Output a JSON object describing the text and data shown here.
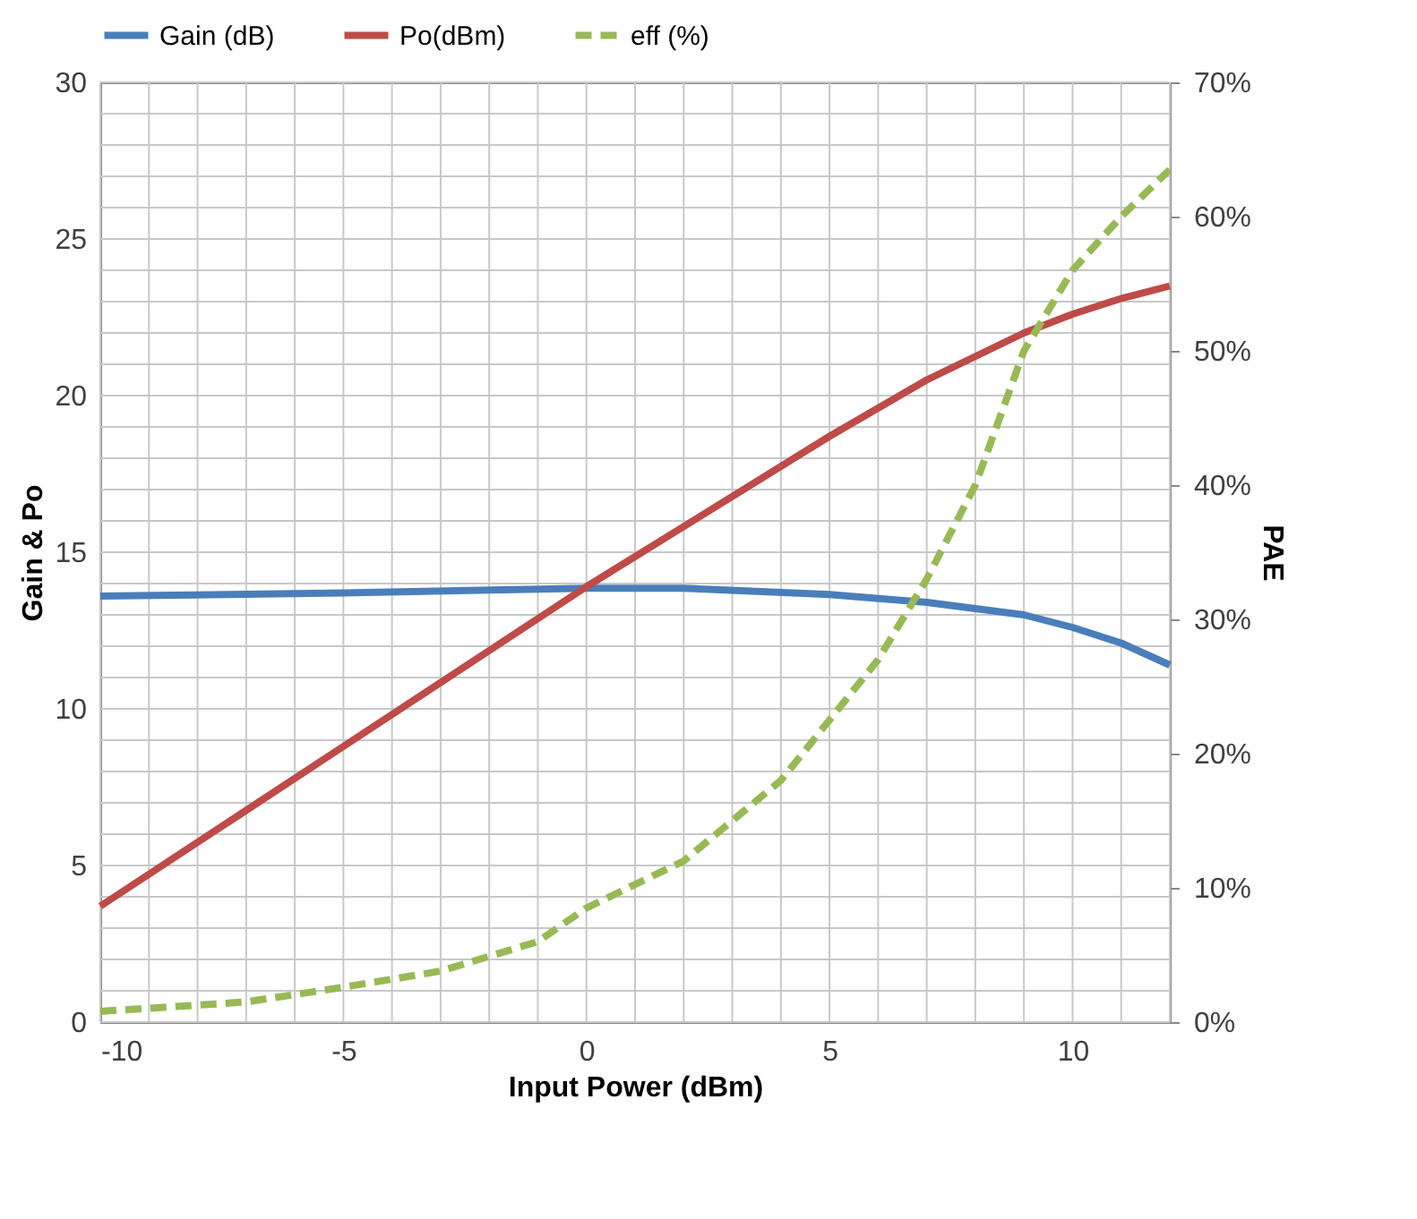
{
  "chart_data": {
    "type": "line",
    "xlabel": "Input Power (dBm)",
    "ylabel": "Gain & Po",
    "y2label": "PAE",
    "xlim": [
      -10,
      12
    ],
    "xticks": [
      -10,
      {
        "value": -9,
        "label": null
      },
      {
        "value": -8,
        "label": null
      },
      {
        "value": -7,
        "label": null
      },
      {
        "value": -6,
        "label": null
      },
      -5,
      {
        "value": -4,
        "label": null
      },
      {
        "value": -3,
        "label": null
      },
      {
        "value": -2,
        "label": null
      },
      {
        "value": -1,
        "label": null
      },
      0,
      {
        "value": 1,
        "label": null
      },
      {
        "value": 2,
        "label": null
      },
      {
        "value": 3,
        "label": null
      },
      {
        "value": 4,
        "label": null
      },
      5,
      {
        "value": 6,
        "label": null
      },
      {
        "value": 7,
        "label": null
      },
      {
        "value": 8,
        "label": null
      },
      {
        "value": 9,
        "label": null
      },
      10,
      {
        "value": 11,
        "label": null
      },
      {
        "value": 12,
        "label": null
      }
    ],
    "ylim": [
      0,
      30
    ],
    "yticks": [
      0,
      {
        "value": 1,
        "label": null
      },
      {
        "value": 2,
        "label": null
      },
      {
        "value": 3,
        "label": null
      },
      {
        "value": 4,
        "label": null
      },
      5,
      {
        "value": 6,
        "label": null
      },
      {
        "value": 7,
        "label": null
      },
      {
        "value": 8,
        "label": null
      },
      {
        "value": 9,
        "label": null
      },
      10,
      {
        "value": 11,
        "label": null
      },
      {
        "value": 12,
        "label": null
      },
      {
        "value": 13,
        "label": null
      },
      {
        "value": 14,
        "label": null
      },
      15,
      {
        "value": 16,
        "label": null
      },
      {
        "value": 17,
        "label": null
      },
      {
        "value": 18,
        "label": null
      },
      {
        "value": 19,
        "label": null
      },
      20,
      {
        "value": 21,
        "label": null
      },
      {
        "value": 22,
        "label": null
      },
      {
        "value": 23,
        "label": null
      },
      {
        "value": 24,
        "label": null
      },
      25,
      {
        "value": 26,
        "label": null
      },
      {
        "value": 27,
        "label": null
      },
      {
        "value": 28,
        "label": null
      },
      {
        "value": 29,
        "label": null
      },
      30
    ],
    "y2lim": [
      0,
      70
    ],
    "y2ticks": [
      {
        "value": 0,
        "label": "0%"
      },
      {
        "value": 10,
        "label": "10%"
      },
      {
        "value": 20,
        "label": "20%"
      },
      {
        "value": 30,
        "label": "30%"
      },
      {
        "value": 40,
        "label": "40%"
      },
      {
        "value": 50,
        "label": "50%"
      },
      {
        "value": 60,
        "label": "60%"
      },
      {
        "value": 70,
        "label": "70%"
      }
    ],
    "grid": true,
    "legend": "top",
    "marker": "none",
    "series": [
      {
        "name": "Gain (dB)",
        "color": "#4a7ebb",
        "line_style": "solid",
        "x": [
          -10,
          -5,
          0,
          2,
          5,
          7,
          9,
          10,
          11,
          12
        ],
        "values": [
          13.6,
          13.7,
          13.85,
          13.85,
          13.65,
          13.4,
          13.0,
          12.6,
          12.1,
          11.4
        ]
      },
      {
        "name": "Po(dBm)",
        "color": "#be4b48",
        "line_style": "solid",
        "x": [
          -10,
          -5,
          0,
          5,
          7,
          9,
          10,
          11,
          12
        ],
        "values": [
          3.7,
          8.8,
          13.9,
          18.7,
          20.5,
          22.0,
          22.6,
          23.1,
          23.5
        ]
      },
      {
        "name": "eff (%)",
        "color": "#98b954",
        "line_style": "dashed",
        "axis": "y2",
        "x": [
          -10,
          -7,
          -5,
          -3,
          -1,
          0,
          2,
          4,
          5,
          6,
          7,
          8,
          9,
          10,
          11,
          12
        ],
        "values": [
          0.8,
          1.5,
          2.6,
          3.8,
          6,
          8.5,
          12,
          18,
          22.5,
          27,
          33,
          40,
          50,
          56,
          60,
          63.5
        ]
      }
    ]
  }
}
